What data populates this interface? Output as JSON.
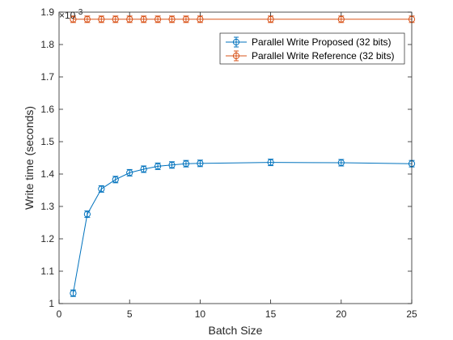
{
  "chart_data": {
    "type": "line",
    "xlabel": "Batch Size",
    "ylabel": "Write time (seconds)",
    "exponent_label": "×10^-3",
    "exponent_text": {
      "base": "×10",
      "exp": "-3"
    },
    "xlim": [
      0,
      25
    ],
    "ylim": [
      1.0,
      1.9
    ],
    "xticks": [
      0,
      5,
      10,
      15,
      20,
      25
    ],
    "yticks": [
      1.0,
      1.1,
      1.2,
      1.3,
      1.4,
      1.5,
      1.6,
      1.7,
      1.8,
      1.9
    ],
    "xtick_labels": [
      "0",
      "5",
      "10",
      "15",
      "20",
      "25"
    ],
    "ytick_labels": [
      "1",
      "1.1",
      "1.2",
      "1.3",
      "1.4",
      "1.5",
      "1.6",
      "1.7",
      "1.8",
      "1.9"
    ],
    "grid": false,
    "box": true,
    "legend_position": "top-right",
    "series": [
      {
        "name": "Parallel Write Proposed (32 bits)",
        "color": "#0072BD",
        "marker": "circle",
        "errorbars": true,
        "x": [
          1,
          2,
          3,
          4,
          5,
          6,
          7,
          8,
          9,
          10,
          15,
          20,
          25
        ],
        "y": [
          1.032,
          1.276,
          1.354,
          1.383,
          1.404,
          1.415,
          1.424,
          1.428,
          1.432,
          1.433,
          1.436,
          1.435,
          1.432
        ]
      },
      {
        "name": "Parallel Write Reference (32 bits)",
        "color": "#D95319",
        "marker": "circle",
        "errorbars": true,
        "x": [
          1,
          2,
          3,
          4,
          5,
          6,
          7,
          8,
          9,
          10,
          15,
          20,
          25
        ],
        "y": [
          1.878,
          1.878,
          1.878,
          1.878,
          1.878,
          1.878,
          1.878,
          1.878,
          1.878,
          1.878,
          1.878,
          1.878,
          1.878
        ]
      }
    ]
  }
}
